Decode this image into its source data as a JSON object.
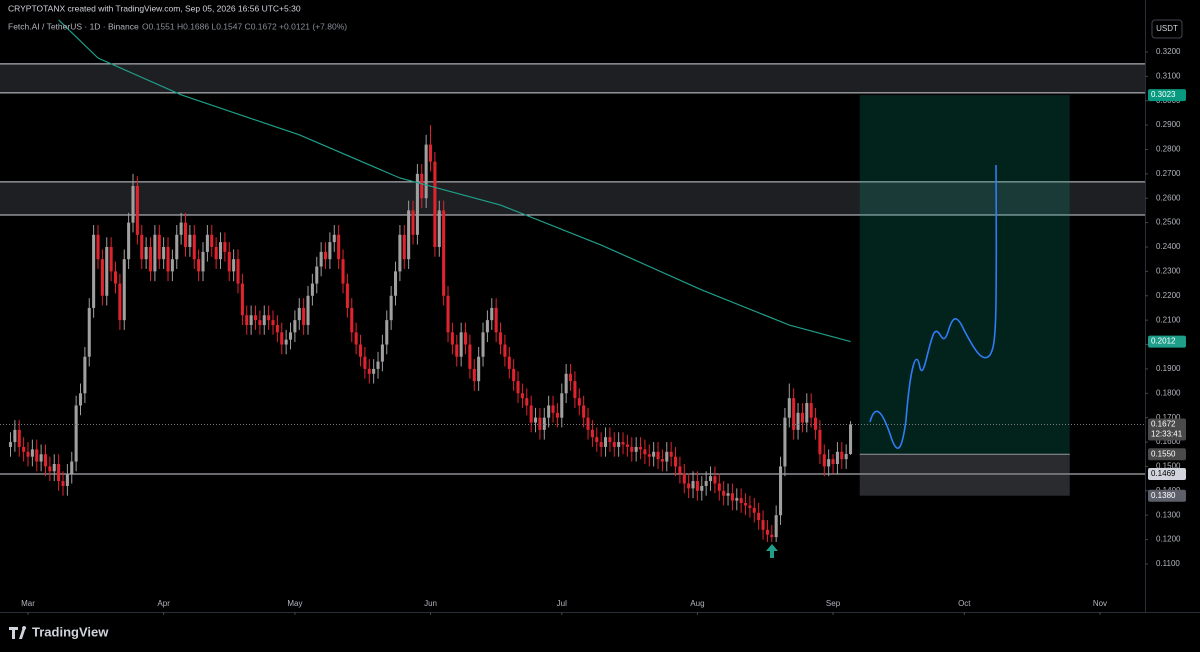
{
  "header": {
    "credit": "CRYPTOTANX created with TradingView.com, Sep 05, 2026 16:56 UTC+5:30",
    "symbol": "Fetch.AI / TetherUS · 1D · Binance",
    "readout": "O0.1551 H0.1686 L0.1547 C0.1672 +0.0121 (+7.80%)"
  },
  "footer": {
    "brand": "TradingView"
  },
  "chart_data": {
    "type": "candlestick",
    "y_unit": "USDT",
    "up_color": "#a0a0a0",
    "down_color": "#e0242f",
    "grid": false,
    "xlim": [
      -2.4,
      259.3
    ],
    "ylim": [
      0.0903,
      0.3413
    ],
    "xticks": [
      {
        "value": 4,
        "label": "Mar"
      },
      {
        "value": 35,
        "label": "Apr"
      },
      {
        "value": 65,
        "label": "May"
      },
      {
        "value": 96,
        "label": "Jun"
      },
      {
        "value": 126,
        "label": "Jul"
      },
      {
        "value": 157,
        "label": "Aug"
      },
      {
        "value": 188,
        "label": "Sep"
      },
      {
        "value": 218,
        "label": "Oct"
      },
      {
        "value": 249,
        "label": "Nov"
      }
    ],
    "yticks": [
      {
        "value": 0.11,
        "label": "0.1100"
      },
      {
        "value": 0.12,
        "label": "0.1200"
      },
      {
        "value": 0.13,
        "label": "0.1300"
      },
      {
        "value": 0.14,
        "label": "0.1400"
      },
      {
        "value": 0.15,
        "label": "0.1500"
      },
      {
        "value": 0.16,
        "label": "0.1600"
      },
      {
        "value": 0.17,
        "label": "0.1700"
      },
      {
        "value": 0.18,
        "label": "0.1800"
      },
      {
        "value": 0.19,
        "label": "0.1900"
      },
      {
        "value": 0.2,
        "label": "0.2000"
      },
      {
        "value": 0.21,
        "label": "0.2100"
      },
      {
        "value": 0.22,
        "label": "0.2200"
      },
      {
        "value": 0.23,
        "label": "0.2300"
      },
      {
        "value": 0.24,
        "label": "0.2400"
      },
      {
        "value": 0.25,
        "label": "0.2500"
      },
      {
        "value": 0.26,
        "label": "0.2600"
      },
      {
        "value": 0.27,
        "label": "0.2700"
      },
      {
        "value": 0.28,
        "label": "0.2800"
      },
      {
        "value": 0.29,
        "label": "0.2900"
      },
      {
        "value": 0.3,
        "label": "0.3000"
      },
      {
        "value": 0.31,
        "label": "0.3100"
      },
      {
        "value": 0.32,
        "label": "0.3200"
      }
    ],
    "x": [
      0,
      1,
      2,
      3,
      4,
      5,
      6,
      7,
      8,
      9,
      10,
      11,
      12,
      13,
      14,
      15,
      16,
      17,
      18,
      19,
      20,
      21,
      22,
      23,
      24,
      25,
      26,
      27,
      28,
      29,
      30,
      31,
      32,
      33,
      34,
      35,
      36,
      37,
      38,
      39,
      40,
      41,
      42,
      43,
      44,
      45,
      46,
      47,
      48,
      49,
      50,
      51,
      52,
      53,
      54,
      55,
      56,
      57,
      58,
      59,
      60,
      61,
      62,
      63,
      64,
      65,
      66,
      67,
      68,
      69,
      70,
      71,
      72,
      73,
      74,
      75,
      76,
      77,
      78,
      79,
      80,
      81,
      82,
      83,
      84,
      85,
      86,
      87,
      88,
      89,
      90,
      91,
      92,
      93,
      94,
      95,
      96,
      97,
      98,
      99,
      100,
      101,
      102,
      103,
      104,
      105,
      106,
      107,
      108,
      109,
      110,
      111,
      112,
      113,
      114,
      115,
      116,
      117,
      118,
      119,
      120,
      121,
      122,
      123,
      124,
      125,
      126,
      127,
      128,
      129,
      130,
      131,
      132,
      133,
      134,
      135,
      136,
      137,
      138,
      139,
      140,
      141,
      142,
      143,
      144,
      145,
      146,
      147,
      148,
      149,
      150,
      151,
      152,
      153,
      154,
      155,
      156,
      157,
      158,
      159,
      160,
      161,
      162,
      163,
      164,
      165,
      166,
      167,
      168,
      169,
      170,
      171,
      172,
      173,
      174,
      175,
      176,
      177,
      178,
      179,
      180,
      181,
      182,
      183,
      184,
      185,
      186,
      187,
      188,
      189,
      190,
      191,
      192
    ],
    "open": [
      0.158,
      0.16,
      0.165,
      0.158,
      0.156,
      0.154,
      0.157,
      0.152,
      0.155,
      0.15,
      0.148,
      0.151,
      0.144,
      0.142,
      0.147,
      0.152,
      0.175,
      0.18,
      0.195,
      0.215,
      0.245,
      0.235,
      0.22,
      0.24,
      0.23,
      0.225,
      0.21,
      0.235,
      0.25,
      0.265,
      0.245,
      0.235,
      0.24,
      0.23,
      0.245,
      0.235,
      0.24,
      0.23,
      0.235,
      0.245,
      0.25,
      0.24,
      0.245,
      0.235,
      0.23,
      0.238,
      0.245,
      0.24,
      0.235,
      0.242,
      0.238,
      0.23,
      0.235,
      0.225,
      0.212,
      0.208,
      0.212,
      0.21,
      0.208,
      0.212,
      0.21,
      0.208,
      0.205,
      0.2,
      0.202,
      0.205,
      0.21,
      0.215,
      0.208,
      0.22,
      0.225,
      0.232,
      0.238,
      0.235,
      0.242,
      0.245,
      0.235,
      0.225,
      0.215,
      0.205,
      0.2,
      0.195,
      0.19,
      0.188,
      0.19,
      0.193,
      0.2,
      0.21,
      0.22,
      0.23,
      0.245,
      0.235,
      0.255,
      0.245,
      0.27,
      0.26,
      0.282,
      0.275,
      0.24,
      0.255,
      0.22,
      0.205,
      0.2,
      0.195,
      0.205,
      0.2,
      0.19,
      0.185,
      0.195,
      0.205,
      0.21,
      0.215,
      0.205,
      0.2,
      0.195,
      0.19,
      0.185,
      0.18,
      0.178,
      0.175,
      0.168,
      0.17,
      0.165,
      0.17,
      0.175,
      0.172,
      0.17,
      0.18,
      0.188,
      0.185,
      0.178,
      0.175,
      0.17,
      0.165,
      0.162,
      0.16,
      0.158,
      0.162,
      0.16,
      0.158,
      0.16,
      0.159,
      0.158,
      0.156,
      0.158,
      0.157,
      0.155,
      0.154,
      0.156,
      0.153,
      0.152,
      0.156,
      0.154,
      0.15,
      0.147,
      0.143,
      0.141,
      0.144,
      0.14,
      0.142,
      0.144,
      0.146,
      0.143,
      0.14,
      0.138,
      0.139,
      0.136,
      0.137,
      0.135,
      0.134,
      0.133,
      0.131,
      0.128,
      0.124,
      0.122,
      0.121,
      0.13,
      0.15,
      0.17,
      0.178,
      0.165,
      0.172,
      0.168,
      0.176,
      0.17,
      0.165,
      0.155,
      0.15,
      0.153,
      0.151,
      0.156,
      0.153,
      0.1551
    ],
    "high": [
      0.164,
      0.169,
      0.169,
      0.162,
      0.16,
      0.161,
      0.161,
      0.159,
      0.159,
      0.154,
      0.155,
      0.155,
      0.148,
      0.151,
      0.156,
      0.179,
      0.184,
      0.199,
      0.219,
      0.249,
      0.249,
      0.239,
      0.244,
      0.244,
      0.234,
      0.229,
      0.239,
      0.254,
      0.27,
      0.269,
      0.249,
      0.244,
      0.244,
      0.249,
      0.249,
      0.244,
      0.244,
      0.239,
      0.249,
      0.254,
      0.254,
      0.249,
      0.249,
      0.239,
      0.242,
      0.249,
      0.249,
      0.244,
      0.246,
      0.246,
      0.242,
      0.239,
      0.239,
      0.229,
      0.216,
      0.216,
      0.216,
      0.214,
      0.216,
      0.216,
      0.214,
      0.212,
      0.209,
      0.206,
      0.209,
      0.214,
      0.219,
      0.219,
      0.224,
      0.229,
      0.236,
      0.242,
      0.242,
      0.246,
      0.249,
      0.249,
      0.239,
      0.229,
      0.219,
      0.209,
      0.204,
      0.199,
      0.194,
      0.194,
      0.197,
      0.204,
      0.214,
      0.224,
      0.234,
      0.249,
      0.249,
      0.259,
      0.259,
      0.274,
      0.274,
      0.286,
      0.29,
      0.279,
      0.259,
      0.259,
      0.224,
      0.209,
      0.204,
      0.209,
      0.209,
      0.204,
      0.194,
      0.199,
      0.209,
      0.214,
      0.219,
      0.219,
      0.209,
      0.204,
      0.199,
      0.194,
      0.189,
      0.184,
      0.182,
      0.179,
      0.174,
      0.174,
      0.174,
      0.179,
      0.179,
      0.176,
      0.184,
      0.192,
      0.192,
      0.189,
      0.182,
      0.179,
      0.174,
      0.169,
      0.166,
      0.164,
      0.166,
      0.166,
      0.164,
      0.164,
      0.164,
      0.163,
      0.162,
      0.162,
      0.162,
      0.161,
      0.159,
      0.16,
      0.16,
      0.157,
      0.16,
      0.16,
      0.158,
      0.154,
      0.151,
      0.147,
      0.148,
      0.148,
      0.146,
      0.148,
      0.15,
      0.15,
      0.147,
      0.144,
      0.143,
      0.143,
      0.141,
      0.141,
      0.139,
      0.138,
      0.137,
      0.135,
      0.132,
      0.128,
      0.126,
      0.134,
      0.154,
      0.174,
      0.184,
      0.182,
      0.176,
      0.176,
      0.18,
      0.18,
      0.174,
      0.169,
      0.159,
      0.157,
      0.155,
      0.16,
      0.16,
      0.159,
      0.1686
    ],
    "low": [
      0.154,
      0.156,
      0.154,
      0.152,
      0.15,
      0.15,
      0.148,
      0.148,
      0.146,
      0.144,
      0.144,
      0.14,
      0.138,
      0.138,
      0.143,
      0.148,
      0.171,
      0.176,
      0.191,
      0.211,
      0.231,
      0.216,
      0.216,
      0.226,
      0.221,
      0.206,
      0.206,
      0.231,
      0.246,
      0.241,
      0.231,
      0.231,
      0.226,
      0.226,
      0.231,
      0.231,
      0.226,
      0.226,
      0.231,
      0.241,
      0.236,
      0.236,
      0.231,
      0.226,
      0.226,
      0.234,
      0.236,
      0.231,
      0.231,
      0.234,
      0.226,
      0.226,
      0.221,
      0.208,
      0.204,
      0.204,
      0.206,
      0.204,
      0.204,
      0.206,
      0.204,
      0.201,
      0.196,
      0.196,
      0.198,
      0.201,
      0.206,
      0.204,
      0.204,
      0.216,
      0.221,
      0.228,
      0.231,
      0.231,
      0.238,
      0.231,
      0.221,
      0.211,
      0.201,
      0.196,
      0.191,
      0.186,
      0.184,
      0.184,
      0.186,
      0.189,
      0.196,
      0.206,
      0.216,
      0.226,
      0.231,
      0.231,
      0.241,
      0.241,
      0.256,
      0.256,
      0.271,
      0.236,
      0.236,
      0.216,
      0.201,
      0.196,
      0.191,
      0.191,
      0.196,
      0.186,
      0.181,
      0.181,
      0.191,
      0.201,
      0.206,
      0.201,
      0.196,
      0.191,
      0.186,
      0.181,
      0.176,
      0.174,
      0.171,
      0.164,
      0.164,
      0.161,
      0.161,
      0.166,
      0.168,
      0.166,
      0.166,
      0.176,
      0.181,
      0.174,
      0.171,
      0.166,
      0.161,
      0.158,
      0.156,
      0.154,
      0.154,
      0.156,
      0.154,
      0.154,
      0.155,
      0.154,
      0.152,
      0.152,
      0.153,
      0.151,
      0.15,
      0.15,
      0.149,
      0.148,
      0.148,
      0.15,
      0.146,
      0.143,
      0.139,
      0.137,
      0.137,
      0.136,
      0.136,
      0.138,
      0.14,
      0.139,
      0.136,
      0.134,
      0.134,
      0.132,
      0.132,
      0.131,
      0.13,
      0.129,
      0.127,
      0.124,
      0.12,
      0.119,
      0.119,
      0.119,
      0.126,
      0.146,
      0.166,
      0.161,
      0.161,
      0.164,
      0.164,
      0.166,
      0.161,
      0.151,
      0.146,
      0.146,
      0.147,
      0.147,
      0.149,
      0.149,
      0.1547
    ],
    "close": [
      0.16,
      0.165,
      0.158,
      0.156,
      0.154,
      0.157,
      0.152,
      0.155,
      0.15,
      0.148,
      0.151,
      0.144,
      0.142,
      0.147,
      0.152,
      0.175,
      0.18,
      0.195,
      0.215,
      0.245,
      0.235,
      0.22,
      0.24,
      0.23,
      0.225,
      0.21,
      0.235,
      0.25,
      0.265,
      0.245,
      0.235,
      0.24,
      0.23,
      0.245,
      0.235,
      0.24,
      0.23,
      0.235,
      0.245,
      0.25,
      0.24,
      0.245,
      0.235,
      0.23,
      0.238,
      0.245,
      0.24,
      0.235,
      0.242,
      0.238,
      0.23,
      0.235,
      0.225,
      0.212,
      0.208,
      0.212,
      0.21,
      0.208,
      0.212,
      0.21,
      0.208,
      0.205,
      0.2,
      0.202,
      0.205,
      0.21,
      0.215,
      0.208,
      0.22,
      0.225,
      0.232,
      0.238,
      0.235,
      0.242,
      0.245,
      0.235,
      0.225,
      0.215,
      0.205,
      0.2,
      0.195,
      0.19,
      0.188,
      0.19,
      0.193,
      0.2,
      0.21,
      0.22,
      0.23,
      0.245,
      0.235,
      0.255,
      0.245,
      0.27,
      0.26,
      0.282,
      0.275,
      0.24,
      0.255,
      0.22,
      0.205,
      0.2,
      0.195,
      0.205,
      0.2,
      0.19,
      0.185,
      0.195,
      0.205,
      0.21,
      0.215,
      0.205,
      0.2,
      0.195,
      0.19,
      0.185,
      0.18,
      0.178,
      0.175,
      0.168,
      0.17,
      0.165,
      0.17,
      0.175,
      0.172,
      0.17,
      0.18,
      0.188,
      0.185,
      0.178,
      0.175,
      0.17,
      0.165,
      0.162,
      0.16,
      0.158,
      0.162,
      0.16,
      0.158,
      0.16,
      0.159,
      0.158,
      0.156,
      0.158,
      0.157,
      0.155,
      0.154,
      0.156,
      0.153,
      0.152,
      0.156,
      0.154,
      0.15,
      0.147,
      0.143,
      0.141,
      0.144,
      0.14,
      0.142,
      0.144,
      0.146,
      0.143,
      0.14,
      0.138,
      0.139,
      0.136,
      0.137,
      0.135,
      0.134,
      0.133,
      0.131,
      0.128,
      0.124,
      0.122,
      0.121,
      0.13,
      0.15,
      0.17,
      0.178,
      0.165,
      0.172,
      0.168,
      0.176,
      0.17,
      0.165,
      0.155,
      0.15,
      0.153,
      0.151,
      0.156,
      0.153,
      0.1551,
      0.1672
    ],
    "ma": {
      "color": "#1f9e8a",
      "x": [
        11,
        20,
        39,
        66,
        89,
        112,
        135,
        158,
        178,
        192
      ],
      "values": [
        0.3331,
        0.3175,
        0.3024,
        0.286,
        0.2683,
        0.2572,
        0.2408,
        0.2224,
        0.208,
        0.2012
      ]
    },
    "zones": [
      [
        0.3151,
        0.3032
      ],
      [
        0.2667,
        0.2531
      ]
    ],
    "levels": [
      0.1469
    ],
    "position": {
      "x_start": 194.1,
      "x_end": 242.1,
      "target": 0.3023,
      "entry": 0.155,
      "stop": 0.138
    },
    "price_tags": [
      {
        "value": 0.3023,
        "label": "0.3023",
        "color": "#089981"
      },
      {
        "value": 0.2012,
        "label": "0.2012",
        "color": "#1f9e8a"
      },
      {
        "value": 0.1672,
        "label": "0.1672",
        "color": "#4a4a4a",
        "countdown": "12:33:41",
        "price_line": true
      },
      {
        "value": 0.155,
        "label": "0.1550",
        "color": "#4a4a4a"
      },
      {
        "value": 0.1469,
        "label": "0.1469",
        "color": "#d1d4dc",
        "text_color": "#000"
      },
      {
        "value": 0.138,
        "label": "0.1380",
        "color": "#5d606b"
      }
    ]
  }
}
